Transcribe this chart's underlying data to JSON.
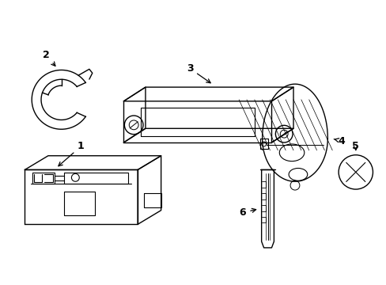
{
  "bg_color": "#ffffff",
  "line_color": "#000000",
  "lw": 1.0,
  "fig_width": 4.89,
  "fig_height": 3.6,
  "dpi": 100
}
